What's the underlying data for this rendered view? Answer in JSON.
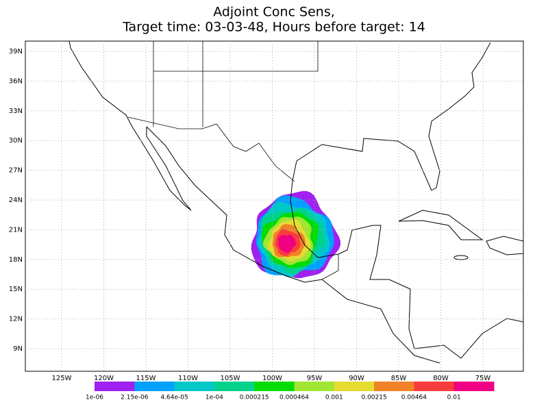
{
  "title": {
    "line1": "Adjoint Conc Sens,",
    "line2": "Target time: 03-03-48, Hours before target: 14"
  },
  "map": {
    "lat_labels": [
      "39N",
      "36N",
      "33N",
      "30N",
      "27N",
      "24N",
      "21N",
      "18N",
      "15N",
      "12N",
      "9N"
    ],
    "lon_labels": [
      "125W",
      "120W",
      "115W",
      "110W",
      "105W",
      "100W",
      "95W",
      "90W",
      "85W",
      "80W",
      "75W"
    ]
  },
  "colorbar": {
    "colors": [
      "#a020f0",
      "#00a0ff",
      "#00c8c8",
      "#00d28c",
      "#00dc00",
      "#a0e632",
      "#e6dc32",
      "#f08228",
      "#fa3c3c",
      "#f00082"
    ],
    "labels": [
      "1e-06",
      "2.15e-06",
      "4.64e-05",
      "1e-04",
      "0.000215",
      "0.000464",
      "0.001",
      "0.00215",
      "0.00464",
      "0.01"
    ]
  }
}
